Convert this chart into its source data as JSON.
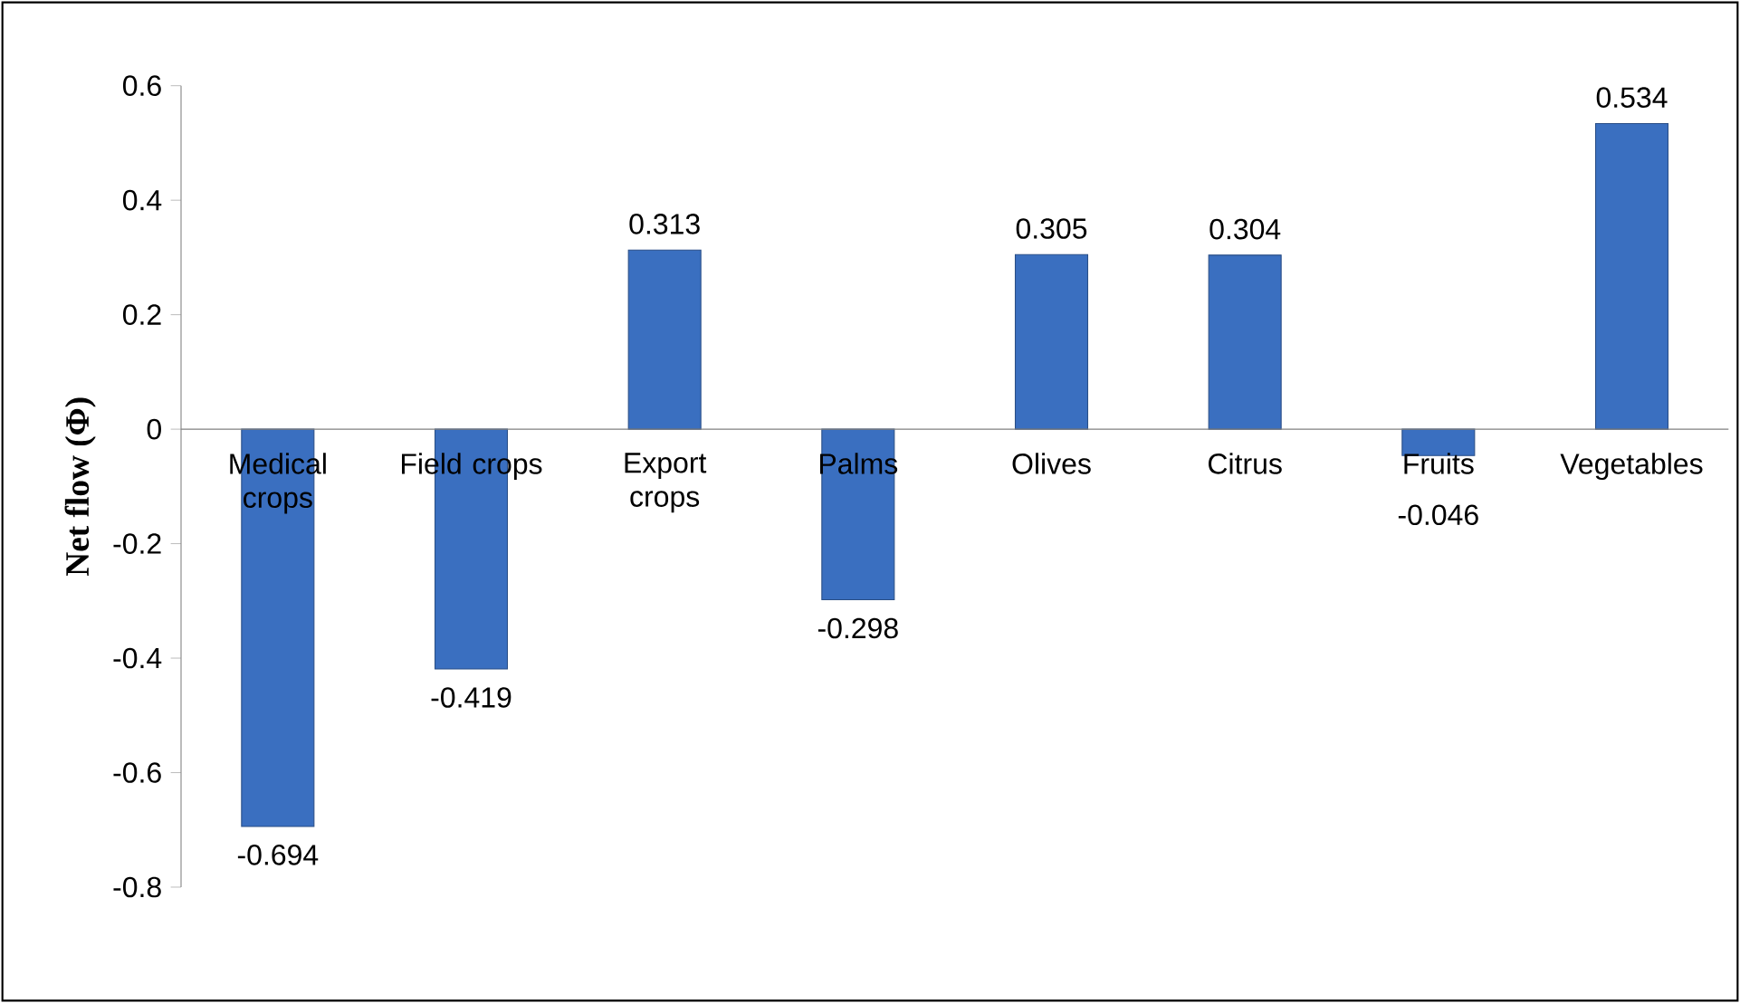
{
  "chart_data": {
    "type": "bar",
    "ylabel": "Net flow (Φ)",
    "categories": [
      "Medical crops",
      "Field crops",
      "Export crops",
      "Palms",
      "Olives",
      "Citrus",
      "Fruits",
      "Vegetables"
    ],
    "values": [
      -0.694,
      -0.419,
      0.313,
      -0.298,
      0.305,
      0.304,
      -0.046,
      0.534
    ],
    "value_labels": [
      "-0.694",
      "-0.419",
      "0.313",
      "-0.298",
      "0.305",
      "0.304",
      "-0.046",
      "0.534"
    ],
    "color": "#3a6fc0",
    "ylim": [
      -0.8,
      0.6
    ],
    "yticks": [
      -0.8,
      -0.6,
      -0.4,
      -0.2,
      0,
      0.2,
      0.4,
      0.6
    ],
    "grid": false
  }
}
